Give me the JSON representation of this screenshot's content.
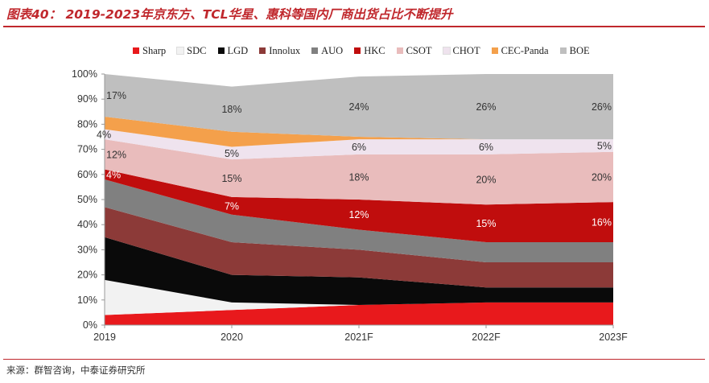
{
  "header": {
    "title": "图表40： 2019-2023年京东方、TCL华星、惠科等国内厂商出货占比不断提升"
  },
  "footer": {
    "source": "来源：群智咨询，中泰证券研究所"
  },
  "chart_data": {
    "type": "area",
    "stacked": true,
    "categories": [
      "2019",
      "2020",
      "2021F",
      "2022F",
      "2023F"
    ],
    "ylim": [
      0,
      100
    ],
    "yticks": [
      "0%",
      "10%",
      "20%",
      "30%",
      "40%",
      "50%",
      "60%",
      "70%",
      "80%",
      "90%",
      "100%"
    ],
    "legend_position": "top",
    "series": [
      {
        "name": "Sharp",
        "color": "#e8191c",
        "values": [
          4,
          6,
          8,
          9,
          9
        ]
      },
      {
        "name": "SDC",
        "color": "#f2f2f2",
        "values": [
          14,
          3,
          0,
          0,
          0
        ]
      },
      {
        "name": "LGD",
        "color": "#0a0a0a",
        "values": [
          17,
          11,
          11,
          6,
          6
        ]
      },
      {
        "name": "Innolux",
        "color": "#8c3a38",
        "values": [
          12,
          13,
          11,
          10,
          10
        ]
      },
      {
        "name": "AUO",
        "color": "#808080",
        "values": [
          11,
          11,
          8,
          8,
          8
        ]
      },
      {
        "name": "HKC",
        "color": "#c00d0d",
        "values": [
          4,
          7,
          12,
          15,
          16
        ]
      },
      {
        "name": "CSOT",
        "color": "#e9bcbc",
        "values": [
          12,
          15,
          18,
          20,
          20
        ]
      },
      {
        "name": "CHOT",
        "color": "#efe3ee",
        "values": [
          4,
          5,
          6,
          6,
          5
        ]
      },
      {
        "name": "CEC-Panda",
        "color": "#f4a04b",
        "values": [
          5,
          6,
          1,
          0,
          0
        ]
      },
      {
        "name": "BOE",
        "color": "#bfbfbf",
        "values": [
          17,
          18,
          24,
          26,
          26
        ]
      }
    ],
    "data_labels": [
      {
        "series": "HKC",
        "index": 0,
        "text": "4%",
        "color": "#ffffff"
      },
      {
        "series": "HKC",
        "index": 1,
        "text": "7%",
        "color": "#ffffff"
      },
      {
        "series": "HKC",
        "index": 2,
        "text": "12%",
        "color": "#ffffff"
      },
      {
        "series": "HKC",
        "index": 3,
        "text": "15%",
        "color": "#ffffff"
      },
      {
        "series": "HKC",
        "index": 4,
        "text": "16%",
        "color": "#ffffff"
      },
      {
        "series": "CSOT",
        "index": 0,
        "text": "12%",
        "color": "#333333"
      },
      {
        "series": "CSOT",
        "index": 1,
        "text": "15%",
        "color": "#333333"
      },
      {
        "series": "CSOT",
        "index": 2,
        "text": "18%",
        "color": "#333333"
      },
      {
        "series": "CSOT",
        "index": 3,
        "text": "20%",
        "color": "#333333"
      },
      {
        "series": "CSOT",
        "index": 4,
        "text": "20%",
        "color": "#333333"
      },
      {
        "series": "CHOT",
        "index": 0,
        "text": "4%",
        "color": "#333333"
      },
      {
        "series": "CHOT",
        "index": 1,
        "text": "5%",
        "color": "#333333"
      },
      {
        "series": "CHOT",
        "index": 2,
        "text": "6%",
        "color": "#333333"
      },
      {
        "series": "CHOT",
        "index": 3,
        "text": "6%",
        "color": "#333333"
      },
      {
        "series": "CHOT",
        "index": 4,
        "text": "5%",
        "color": "#333333"
      },
      {
        "series": "BOE",
        "index": 0,
        "text": "17%",
        "color": "#333333"
      },
      {
        "series": "BOE",
        "index": 1,
        "text": "18%",
        "color": "#333333"
      },
      {
        "series": "BOE",
        "index": 2,
        "text": "24%",
        "color": "#333333"
      },
      {
        "series": "BOE",
        "index": 3,
        "text": "26%",
        "color": "#333333"
      },
      {
        "series": "BOE",
        "index": 4,
        "text": "26%",
        "color": "#333333"
      }
    ]
  }
}
